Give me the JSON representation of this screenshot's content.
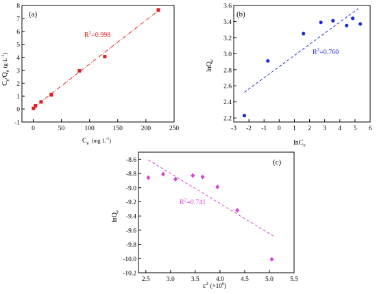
{
  "chart_data": [
    {
      "type": "scatter",
      "panel_label": "(a)",
      "xlabel_main": "C",
      "xlabel_sub": "e",
      "xlabel_unit": "(mg·L",
      "xlabel_unit_sup": "-1",
      "xlabel_unit_end": ")",
      "ylabel_a": "C",
      "ylabel_a_sub": "e",
      "ylabel_b": "/Q",
      "ylabel_b_sub": "e",
      "ylabel_unit": "(g·L",
      "ylabel_unit_sup": "-1",
      "ylabel_unit_end": ")",
      "annotation": "R",
      "annotation_sup": "2",
      "annotation_end": "=0.998",
      "xlim": [
        -20,
        250
      ],
      "ylim": [
        -1,
        8
      ],
      "xticks": [
        0,
        50,
        100,
        150,
        200,
        250
      ],
      "yticks": [
        -1,
        0,
        1,
        2,
        3,
        4,
        5,
        6,
        7,
        8
      ],
      "x": [
        0.5,
        4,
        14,
        32,
        82,
        127,
        222
      ],
      "y": [
        0.05,
        0.25,
        0.55,
        1.1,
        2.95,
        4.05,
        7.65
      ],
      "fit": [
        [
          0,
          0.1
        ],
        [
          225,
          7.7
        ]
      ],
      "color": "#e02020"
    },
    {
      "type": "scatter",
      "panel_label": "(b)",
      "xlabel_main": "lnC",
      "xlabel_sub": "e",
      "ylabel_a": "lnQ",
      "ylabel_a_sub": "e",
      "annotation": "R",
      "annotation_sup": "2",
      "annotation_end": "=0.760",
      "xlim": [
        -3,
        6
      ],
      "ylim": [
        2.15,
        3.6
      ],
      "xticks": [
        -3,
        -2,
        -1,
        0,
        1,
        2,
        3,
        4,
        5,
        6
      ],
      "yticks": [
        2.2,
        2.4,
        2.6,
        2.8,
        3.0,
        3.2,
        3.4,
        3.6
      ],
      "x": [
        -2.3,
        -0.75,
        1.6,
        2.75,
        3.55,
        4.45,
        4.85,
        5.35
      ],
      "y": [
        2.23,
        2.91,
        3.25,
        3.39,
        3.41,
        3.35,
        3.44,
        3.37
      ],
      "fit": [
        [
          -2.3,
          2.52
        ],
        [
          5.2,
          3.56
        ]
      ],
      "color": "#1a2bd6"
    },
    {
      "type": "scatter",
      "panel_label": "(c)",
      "xlabel_main": "ε",
      "xlabel_sup": "2",
      "xlabel_unit": "(×10",
      "xlabel_unit_sup": "8",
      "xlabel_unit_end": ")",
      "ylabel_a": "lnQ",
      "ylabel_a_sub": "e",
      "annotation": "R",
      "annotation_sup": "2",
      "annotation_end": "=0.741",
      "xlim": [
        2.35,
        5.5
      ],
      "ylim": [
        -10.2,
        -8.5
      ],
      "xticks": [
        2.5,
        3.0,
        3.5,
        4.0,
        4.5,
        5.0,
        5.5
      ],
      "yticks": [
        -8.6,
        -8.8,
        -9.0,
        -9.2,
        -9.4,
        -9.6,
        -9.8,
        -10.0,
        -10.2
      ],
      "x": [
        2.55,
        2.85,
        3.1,
        3.45,
        3.65,
        3.95,
        4.35,
        5.05
      ],
      "y": [
        -8.86,
        -8.81,
        -8.88,
        -8.83,
        -8.85,
        -8.99,
        -9.32,
        -10.01
      ],
      "fit": [
        [
          2.55,
          -8.61
        ],
        [
          5.1,
          -9.69
        ]
      ],
      "color": "#d640d6"
    }
  ]
}
